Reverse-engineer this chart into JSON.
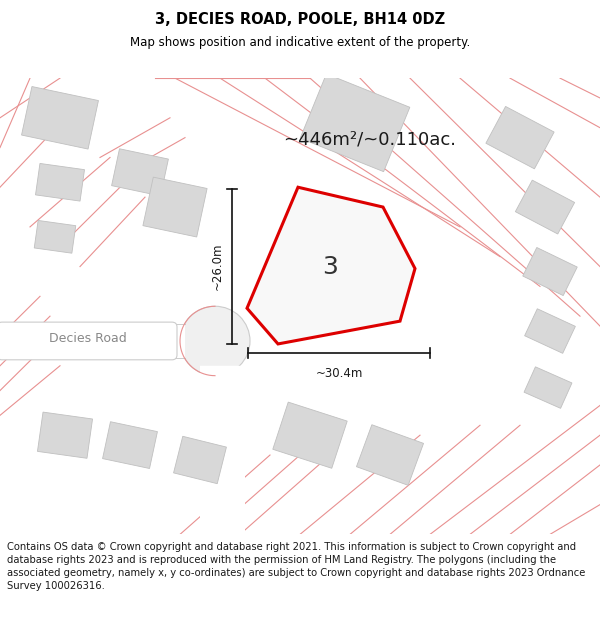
{
  "title": "3, DECIES ROAD, POOLE, BH14 0DZ",
  "subtitle": "Map shows position and indicative extent of the property.",
  "footer": "Contains OS data © Crown copyright and database right 2021. This information is subject to Crown copyright and database rights 2023 and is reproduced with the permission of HM Land Registry. The polygons (including the associated geometry, namely x, y co-ordinates) are subject to Crown copyright and database rights 2023 Ordnance Survey 100026316.",
  "area_label": "~446m²/~0.110ac.",
  "dim_vertical": "~26.0m",
  "dim_horizontal": "~30.4m",
  "road_label": "Decies Road",
  "plot_number": "3",
  "map_bg": "#f2f2f2",
  "property_color": "#dd0000",
  "property_fill": "#f8f8f8",
  "building_color": "#d8d8d8",
  "building_edge": "#c0c0c0",
  "cadastral_color": "#e89090",
  "dim_line_color": "#111111",
  "road_fill": "#ffffff",
  "road_edge": "#cccccc",
  "road_text_color": "#888888",
  "title_fontsize": 10.5,
  "subtitle_fontsize": 8.5,
  "footer_fontsize": 7.2,
  "area_fontsize": 13,
  "plot_num_fontsize": 18,
  "dim_fontsize": 8.5
}
